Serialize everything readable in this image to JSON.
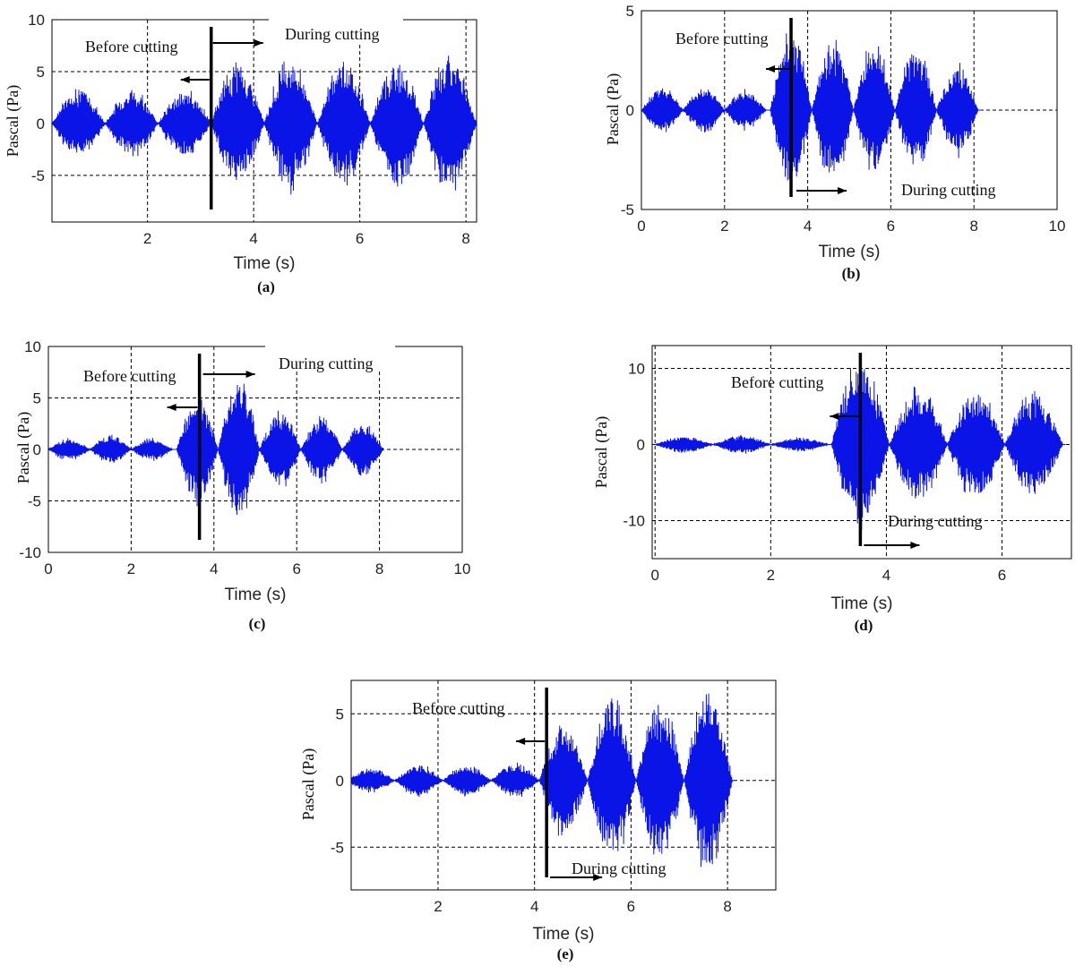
{
  "colors": {
    "signal": "#0a14e6",
    "annotation": "#000000",
    "grid": "#000000"
  },
  "chart_data": [
    {
      "type": "line",
      "panel_label": "(a)",
      "xlabel": "Time (s)",
      "ylabel": "Pascal (Pa)",
      "xlim": [
        0.2,
        8.2
      ],
      "ylim": [
        -9.5,
        10
      ],
      "xticks": [
        2,
        4,
        6,
        8
      ],
      "yticks": [
        -5,
        0,
        5,
        10
      ],
      "grid": true,
      "cut_time": 3.2,
      "signal_end": 8.2,
      "before_label": "Before cutting",
      "during_label": "During cutting",
      "lobes": [
        {
          "center": 0.7,
          "amp": 3.7
        },
        {
          "center": 1.7,
          "amp": 3.5
        },
        {
          "center": 2.7,
          "amp": 3.6
        },
        {
          "center": 3.7,
          "amp": 6.3
        },
        {
          "center": 4.7,
          "amp": 7.0
        },
        {
          "center": 5.7,
          "amp": 6.5
        },
        {
          "center": 6.7,
          "amp": 6.7
        },
        {
          "center": 7.7,
          "amp": 7.2
        }
      ]
    },
    {
      "type": "line",
      "panel_label": "(b)",
      "xlabel": "Time (s)",
      "ylabel": "Pascal (Pa)",
      "xlim": [
        0,
        10
      ],
      "ylim": [
        -5,
        5
      ],
      "xticks": [
        0,
        2,
        4,
        6,
        8,
        10
      ],
      "yticks": [
        -5,
        0,
        5
      ],
      "grid": true,
      "cut_time": 3.6,
      "signal_end": 8.2,
      "before_label": "Before cutting",
      "during_label": "During cutting",
      "lobes": [
        {
          "center": 0.5,
          "amp": 1.3
        },
        {
          "center": 1.5,
          "amp": 1.3
        },
        {
          "center": 2.5,
          "amp": 1.1
        },
        {
          "center": 3.6,
          "amp": 4.5
        },
        {
          "center": 4.6,
          "amp": 4.0
        },
        {
          "center": 5.6,
          "amp": 3.7
        },
        {
          "center": 6.6,
          "amp": 3.5
        },
        {
          "center": 7.6,
          "amp": 2.5
        }
      ]
    },
    {
      "type": "line",
      "panel_label": "(c)",
      "xlabel": "Time (s)",
      "ylabel": "Pascal (Pa)",
      "xlim": [
        0,
        10
      ],
      "ylim": [
        -10,
        10
      ],
      "xticks": [
        0,
        2,
        4,
        6,
        8,
        10
      ],
      "yticks": [
        -10,
        -5,
        0,
        5,
        10
      ],
      "grid": true,
      "cut_time": 3.65,
      "signal_end": 8.1,
      "before_label": "Before cutting",
      "during_label": "During cutting",
      "lobes": [
        {
          "center": 0.5,
          "amp": 1.2
        },
        {
          "center": 1.5,
          "amp": 1.5
        },
        {
          "center": 2.5,
          "amp": 1.2
        },
        {
          "center": 3.6,
          "amp": 5.8
        },
        {
          "center": 4.6,
          "amp": 7.5
        },
        {
          "center": 5.6,
          "amp": 4.0
        },
        {
          "center": 6.6,
          "amp": 3.6
        },
        {
          "center": 7.6,
          "amp": 2.8
        }
      ]
    },
    {
      "type": "line",
      "panel_label": "(d)",
      "xlabel": "Time (s)",
      "ylabel": "Pascal (Pa)",
      "xlim": [
        -0.05,
        7.2
      ],
      "ylim": [
        -15,
        13
      ],
      "xticks": [
        0,
        2,
        4,
        6
      ],
      "yticks": [
        -10,
        0,
        10
      ],
      "grid": true,
      "cut_time": 3.55,
      "signal_end": 7.1,
      "before_label": "Before cutting",
      "during_label": "During cutting",
      "lobes": [
        {
          "center": 0.5,
          "amp": 1.2
        },
        {
          "center": 1.5,
          "amp": 1.3
        },
        {
          "center": 2.5,
          "amp": 1.0
        },
        {
          "center": 3.55,
          "amp": 12.5
        },
        {
          "center": 4.55,
          "amp": 8.5
        },
        {
          "center": 5.55,
          "amp": 8.0
        },
        {
          "center": 6.55,
          "amp": 7.5
        }
      ]
    },
    {
      "type": "line",
      "panel_label": "(e)",
      "xlabel": "Time (s)",
      "ylabel": "Pascal (Pa)",
      "xlim": [
        0.2,
        9
      ],
      "ylim": [
        -8.2,
        7.5
      ],
      "xticks": [
        2,
        4,
        6,
        8
      ],
      "yticks": [
        -5,
        0,
        5
      ],
      "grid": true,
      "cut_time": 4.25,
      "signal_end": 8.15,
      "before_label": "Before cutting",
      "during_label": "During cutting",
      "lobes": [
        {
          "center": 0.6,
          "amp": 1.0
        },
        {
          "center": 1.6,
          "amp": 1.3
        },
        {
          "center": 2.6,
          "amp": 1.3
        },
        {
          "center": 3.6,
          "amp": 1.4
        },
        {
          "center": 4.6,
          "amp": 4.5
        },
        {
          "center": 5.6,
          "amp": 6.8
        },
        {
          "center": 6.6,
          "amp": 6.5
        },
        {
          "center": 7.6,
          "amp": 7.5
        }
      ]
    }
  ]
}
